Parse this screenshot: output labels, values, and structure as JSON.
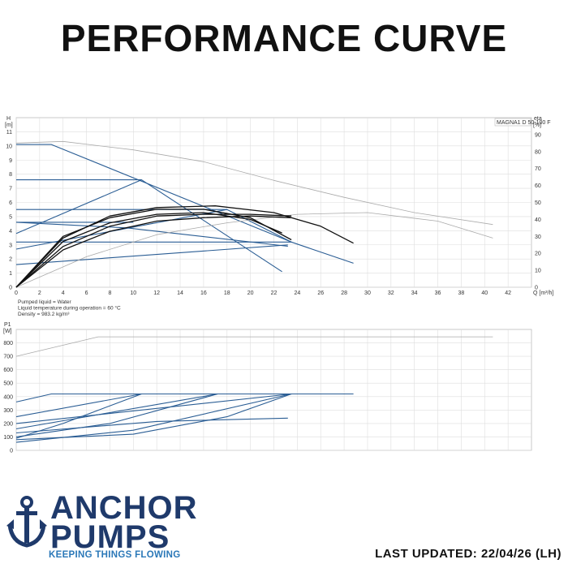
{
  "page": {
    "title": "PERFORMANCE CURVE",
    "last_updated": "LAST UPDATED: 22/04/26 (LH)"
  },
  "logo": {
    "line1": "ANCHOR",
    "line2": "PUMPS",
    "tagline": "KEEPING THINGS FLOWING",
    "brand_color": "#1f3a6b",
    "tagline_color": "#2b78b8"
  },
  "chart_data": [
    {
      "type": "line",
      "legend_box": "MAGNA1 D 50-100 F",
      "ylabel": "H",
      "yunit": "[m]",
      "y2label": "eta",
      "y2unit": "[%]",
      "xlabel": "Q [m³/h]",
      "xlim": [
        0,
        44
      ],
      "ylim": [
        0,
        12
      ],
      "y2lim": [
        0,
        100
      ],
      "xticks": [
        0,
        2,
        4,
        6,
        8,
        10,
        12,
        14,
        16,
        18,
        20,
        22,
        24,
        26,
        28,
        30,
        32,
        34,
        36,
        38,
        40,
        42
      ],
      "yticks": [
        0,
        1,
        2,
        3,
        4,
        5,
        6,
        7,
        8,
        9,
        10,
        11
      ],
      "y2ticks": [
        0,
        10,
        20,
        30,
        40,
        50,
        60,
        70,
        80,
        90
      ],
      "grid": true,
      "notes": [
        "Pumped liquid = Water",
        "Liquid temperature during operation = 60 °C",
        "Density = 983.2 kg/m³"
      ],
      "series": [
        {
          "role": "max-speed",
          "color": "#2a5d94",
          "x": [
            0,
            3,
            23.5,
            28.8
          ],
          "y": [
            10.1,
            10.1,
            3.2,
            1.7
          ]
        },
        {
          "role": "proportional-high",
          "color": "#2a5d94",
          "x": [
            0,
            10.7,
            22.7
          ],
          "y": [
            3.8,
            7.6,
            1.1
          ]
        },
        {
          "role": "horizontal",
          "color": "#2a5d94",
          "x": [
            0,
            10.7
          ],
          "y": [
            7.6,
            7.6
          ]
        },
        {
          "role": "horizontal",
          "color": "#2a5d94",
          "x": [
            0,
            18
          ],
          "y": [
            5.5,
            5.5
          ]
        },
        {
          "role": "horizontal",
          "color": "#2a5d94",
          "x": [
            0,
            10
          ],
          "y": [
            4.6,
            4.6
          ]
        },
        {
          "role": "horizontal",
          "color": "#2a5d94",
          "x": [
            0,
            23.5
          ],
          "y": [
            3.2,
            3.2
          ]
        },
        {
          "role": "proportional-mid",
          "color": "#2a5d94",
          "x": [
            0,
            18,
            23.5
          ],
          "y": [
            2.7,
            5.5,
            3.2
          ]
        },
        {
          "role": "proportional-low",
          "color": "#2a5d94",
          "x": [
            0,
            23.2
          ],
          "y": [
            1.6,
            3.0
          ]
        },
        {
          "role": "constant-mid",
          "color": "#2a5d94",
          "x": [
            0,
            9.5,
            23.2
          ],
          "y": [
            4.6,
            4.2,
            2.9
          ]
        },
        {
          "role": "eta-max",
          "color": "#aaaaaa",
          "axis": "y2",
          "x": [
            0,
            4,
            10,
            16,
            22,
            28,
            34,
            40.7
          ],
          "y2": [
            85,
            86,
            81,
            74,
            63,
            53,
            44,
            37
          ]
        },
        {
          "role": "eta-low",
          "color": "#aaaaaa",
          "axis": "y2",
          "x": [
            0,
            6,
            12,
            18,
            24,
            30,
            36,
            40.7
          ],
          "y2": [
            0,
            18,
            31,
            38,
            43,
            44,
            39,
            29
          ]
        },
        {
          "role": "eta-black-1",
          "color": "#111111",
          "axis": "y2",
          "x": [
            0,
            4,
            8,
            12,
            17,
            22,
            26,
            28.8
          ],
          "y2": [
            0,
            29,
            42,
            47,
            48,
            44,
            36,
            26
          ]
        },
        {
          "role": "eta-black-2",
          "color": "#111111",
          "axis": "y2",
          "x": [
            0,
            4,
            8,
            12,
            16,
            20,
            23.5
          ],
          "y2": [
            0,
            30,
            41,
            46,
            46,
            41,
            28
          ]
        },
        {
          "role": "eta-black-3",
          "color": "#111111",
          "axis": "y2",
          "x": [
            0,
            4,
            8,
            12,
            16,
            20,
            22.7
          ],
          "y2": [
            0,
            27,
            38,
            43,
            44,
            40,
            32
          ]
        },
        {
          "role": "eta-black-4",
          "color": "#111111",
          "axis": "y2",
          "x": [
            0,
            4,
            8,
            12,
            16,
            20,
            23.5
          ],
          "y2": [
            0,
            24,
            36,
            42,
            43,
            43,
            42
          ]
        },
        {
          "role": "eta-black-5",
          "color": "#111111",
          "axis": "y2",
          "x": [
            0,
            4,
            8,
            12,
            16,
            20,
            23.5
          ],
          "y2": [
            0,
            22,
            33,
            39,
            41,
            42,
            41
          ]
        }
      ]
    },
    {
      "type": "line",
      "ylabel": "P1",
      "yunit": "[W]",
      "xlim": [
        0,
        44
      ],
      "ylim": [
        0,
        900
      ],
      "yticks": [
        0,
        100,
        200,
        300,
        400,
        500,
        600,
        700,
        800
      ],
      "grid": true,
      "series": [
        {
          "role": "p1-grey",
          "color": "#aaaaaa",
          "x": [
            0,
            7,
            40.7
          ],
          "y": [
            700,
            845,
            845
          ]
        },
        {
          "role": "p1-max",
          "color": "#2a5d94",
          "x": [
            0,
            3,
            28.8
          ],
          "y": [
            360,
            420,
            420
          ]
        },
        {
          "role": "p1-a",
          "color": "#2a5d94",
          "x": [
            0,
            10.7
          ],
          "y": [
            250,
            420
          ]
        },
        {
          "role": "p1-b",
          "color": "#2a5d94",
          "x": [
            0,
            4,
            10.7
          ],
          "y": [
            90,
            200,
            420
          ]
        },
        {
          "role": "p1-c",
          "color": "#2a5d94",
          "x": [
            0,
            17.2
          ],
          "y": [
            160,
            420
          ]
        },
        {
          "role": "p1-d",
          "color": "#2a5d94",
          "x": [
            0,
            8,
            17.2
          ],
          "y": [
            100,
            200,
            420
          ]
        },
        {
          "role": "p1-e",
          "color": "#2a5d94",
          "x": [
            0,
            23.5
          ],
          "y": [
            200,
            420
          ]
        },
        {
          "role": "p1-f",
          "color": "#2a5d94",
          "x": [
            0,
            10,
            18,
            23.5
          ],
          "y": [
            80,
            120,
            250,
            420
          ]
        },
        {
          "role": "p1-g",
          "color": "#2a5d94",
          "x": [
            0,
            10,
            23.5
          ],
          "y": [
            60,
            150,
            420
          ]
        },
        {
          "role": "p1-h",
          "color": "#2a5d94",
          "x": [
            0,
            12,
            23.2
          ],
          "y": [
            130,
            215,
            240
          ]
        }
      ]
    }
  ]
}
